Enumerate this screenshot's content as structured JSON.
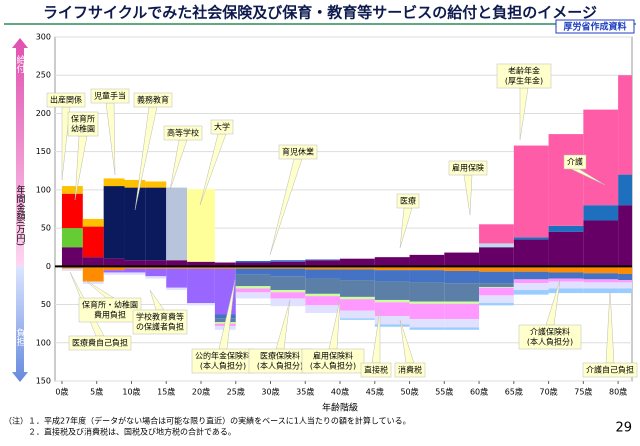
{
  "chart_data": {
    "type": "stacked_step_area",
    "title": "ライフサイクルでみた社会保険及び保育・教育等サービスの給付と負担のイメージ",
    "source": "厚労省作成資料",
    "y_label_top": "給付",
    "ylabel": "年間金額(万円)",
    "y_label_bottom": "負担",
    "xlabel": "年齢階級",
    "x": [
      0,
      3,
      6,
      9,
      12,
      15,
      18,
      22,
      25,
      30,
      35,
      40,
      45,
      50,
      55,
      60,
      65,
      70,
      75,
      80
    ],
    "xlim": [
      -1,
      82
    ],
    "xticks": [
      {
        "value": 0,
        "label": "0歳"
      },
      {
        "value": 5,
        "label": "5歳"
      },
      {
        "value": 10,
        "label": "10歳"
      },
      {
        "value": 15,
        "label": "15歳"
      },
      {
        "value": 20,
        "label": "20歳"
      },
      {
        "value": 25,
        "label": "25歳"
      },
      {
        "value": 30,
        "label": "30歳"
      },
      {
        "value": 35,
        "label": "35歳"
      },
      {
        "value": 40,
        "label": "40歳"
      },
      {
        "value": 45,
        "label": "45歳"
      },
      {
        "value": 50,
        "label": "50歳"
      },
      {
        "value": 55,
        "label": "55歳"
      },
      {
        "value": 60,
        "label": "60歳"
      },
      {
        "value": 65,
        "label": "65歳"
      },
      {
        "value": 70,
        "label": "70歳"
      },
      {
        "value": 75,
        "label": "75歳"
      },
      {
        "value": 80,
        "label": "80歳"
      }
    ],
    "ylim": [
      -150,
      300
    ],
    "yticks": [
      {
        "value": -150,
        "label": "150"
      },
      {
        "value": -100,
        "label": "100"
      },
      {
        "value": -50,
        "label": "50"
      },
      0,
      50,
      100,
      150,
      200,
      250,
      300
    ],
    "grid": true,
    "series": [
      {
        "color": "#660066",
        "values": [
          25,
          12,
          10,
          8,
          8,
          8,
          6,
          5,
          5,
          6,
          8,
          10,
          12,
          15,
          18,
          25,
          35,
          45,
          60,
          80
        ]
      },
      {
        "color": "#66cc33",
        "values": [
          25,
          0,
          0,
          0,
          0,
          0,
          0,
          0,
          0,
          0,
          0,
          0,
          0,
          0,
          0,
          0,
          0,
          0,
          0,
          0
        ]
      },
      {
        "color": "#ff0000",
        "values": [
          45,
          40,
          0,
          0,
          0,
          0,
          0,
          0,
          0,
          0,
          0,
          0,
          0,
          0,
          0,
          0,
          0,
          0,
          0,
          0
        ]
      },
      {
        "color": "#0a1a5c",
        "values": [
          0,
          0,
          95,
          95,
          95,
          0,
          0,
          0,
          0,
          0,
          0,
          0,
          0,
          0,
          0,
          0,
          0,
          0,
          0,
          0
        ]
      },
      {
        "color": "#b8c4dc",
        "values": [
          0,
          0,
          0,
          0,
          0,
          95,
          0,
          0,
          0,
          0,
          0,
          0,
          0,
          0,
          0,
          0,
          0,
          0,
          0,
          0
        ]
      },
      {
        "color": "#ffff99",
        "values": [
          0,
          0,
          0,
          0,
          0,
          0,
          95,
          0,
          0,
          0,
          0,
          0,
          0,
          0,
          0,
          0,
          0,
          0,
          0,
          0
        ]
      },
      {
        "color": "#ffc000",
        "values": [
          10,
          10,
          10,
          10,
          8,
          0,
          0,
          0,
          0,
          0,
          0,
          0,
          0,
          0,
          0,
          0,
          0,
          0,
          0,
          0
        ]
      },
      {
        "color": "#3366cc",
        "values": [
          0,
          0,
          0,
          0,
          0,
          0,
          0,
          0,
          2,
          2,
          1,
          0,
          0,
          0,
          0,
          0,
          0,
          0,
          0,
          0
        ]
      },
      {
        "color": "#1f6fbf",
        "values": [
          0,
          0,
          0,
          0,
          0,
          0,
          0,
          0,
          0,
          0,
          0,
          0,
          0,
          0,
          0,
          0,
          3,
          8,
          20,
          40
        ]
      },
      {
        "color": "#c0d8f0",
        "values": [
          0,
          0,
          0,
          0,
          0,
          0,
          0,
          0,
          0,
          0,
          0,
          0,
          0,
          0,
          0,
          5,
          0,
          0,
          0,
          0
        ]
      },
      {
        "color": "#ff5ca8",
        "values": [
          0,
          0,
          0,
          0,
          0,
          0,
          0,
          0,
          0,
          0,
          0,
          0,
          0,
          0,
          0,
          25,
          120,
          120,
          125,
          130
        ]
      },
      {
        "color": "#ff8c00",
        "values": [
          -3,
          -20,
          -5,
          -3,
          -3,
          -3,
          -3,
          -3,
          -3,
          -3,
          -4,
          -4,
          -5,
          -5,
          -6,
          -7,
          -7,
          -8,
          -9,
          -10
        ]
      },
      {
        "color": "#9966ff",
        "values": [
          0,
          0,
          -3,
          -5,
          -10,
          -25,
          -45,
          -60,
          0,
          0,
          0,
          0,
          0,
          0,
          0,
          0,
          0,
          0,
          0,
          0
        ]
      },
      {
        "color": "#4472c4",
        "values": [
          0,
          0,
          0,
          0,
          0,
          0,
          0,
          -5,
          -8,
          -10,
          -12,
          -14,
          -15,
          -16,
          -16,
          -15,
          -10,
          -8,
          -8,
          -8
        ]
      },
      {
        "color": "#5b7fa6",
        "values": [
          0,
          0,
          0,
          0,
          0,
          0,
          0,
          -5,
          -15,
          -18,
          -20,
          -22,
          -24,
          -25,
          -24,
          -5,
          0,
          0,
          0,
          0
        ]
      },
      {
        "color": "#ccff99",
        "values": [
          0,
          0,
          0,
          0,
          0,
          0,
          0,
          -2,
          -3,
          -3,
          -3,
          -3,
          -3,
          -3,
          -3,
          -1,
          0,
          0,
          0,
          0
        ]
      },
      {
        "color": "#ff99ff",
        "values": [
          0,
          0,
          0,
          0,
          0,
          0,
          0,
          -3,
          -5,
          -8,
          -12,
          -15,
          -18,
          -20,
          -20,
          -10,
          -5,
          -4,
          -4,
          -3
        ]
      },
      {
        "color": "#e0e0ff",
        "values": [
          -3,
          -3,
          -3,
          -3,
          -3,
          -3,
          -3,
          -5,
          -8,
          -10,
          -10,
          -10,
          -11,
          -11,
          -11,
          -10,
          -9,
          -9,
          -8,
          -8
        ]
      },
      {
        "color": "#99ccff",
        "values": [
          0,
          0,
          0,
          0,
          0,
          0,
          0,
          0,
          0,
          0,
          0,
          -2,
          -3,
          -3,
          -3,
          -3,
          -6,
          -6,
          -6,
          -6
        ]
      }
    ],
    "annotations": [
      [
        "出産関係"
      ],
      [
        "保育所",
        "幼稚園"
      ],
      [
        "児童手当"
      ],
      [
        "義務教育"
      ],
      [
        "高等学校"
      ],
      [
        "大学"
      ],
      [
        "育児休業"
      ],
      [
        "雇用保険"
      ],
      [
        "医療"
      ],
      [
        "老齢年金",
        "(厚生年金)"
      ],
      [
        "介護"
      ],
      [
        "医療費自己負担"
      ],
      [
        "保育所・幼稚園",
        "費用負担"
      ],
      [
        "学校教育費等",
        "の保護者負担"
      ],
      [
        "公的年金保険料",
        "(本人負担分)"
      ],
      [
        "医療保険料",
        "(本人負担分)"
      ],
      [
        "雇用保険料",
        "(本人負担分)"
      ],
      [
        "直接税"
      ],
      [
        "消費税"
      ],
      [
        "介護保険料",
        "(本人負担分)"
      ],
      [
        "介護自己負担"
      ]
    ]
  },
  "notes": [
    "（注）１．平成27年度（データがない場合は可能な限り直近）の実績をベースに1人当たりの額を計算している。",
    "２．直接税及び消費税は、国税及び地方税の合計である。"
  ],
  "page": "29"
}
